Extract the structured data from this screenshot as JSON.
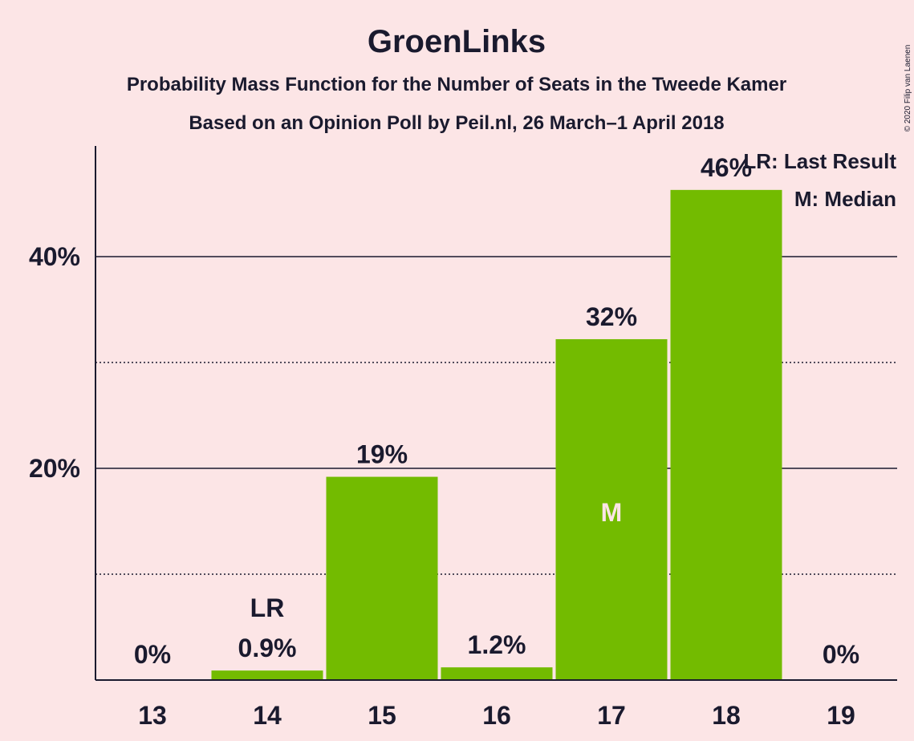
{
  "chart_data": {
    "type": "bar",
    "title": "GroenLinks",
    "subtitle": "Probability Mass Function for the Number of Seats in the Tweede Kamer",
    "subtitle2": "Based on an Opinion Poll by Peil.nl, 26 March–1 April 2018",
    "categories": [
      "13",
      "14",
      "15",
      "16",
      "17",
      "18",
      "19"
    ],
    "values": [
      0,
      0.9,
      19.2,
      1.2,
      32.2,
      46.3,
      0
    ],
    "data_labels": [
      "0%",
      "0.9%",
      "19%",
      "1.2%",
      "32%",
      "46%",
      "0%"
    ],
    "ylim": [
      0,
      50
    ],
    "yticks": [
      {
        "value": 20,
        "label": "20%"
      },
      {
        "value": 40,
        "label": "40%"
      }
    ],
    "minor_gridlines": [
      10,
      30
    ],
    "last_result": {
      "category": "14",
      "label": "LR"
    },
    "median": {
      "category": "17",
      "label": "M"
    },
    "legend": [
      "LR: Last Result",
      "M: Median"
    ],
    "legend_position": "top-right",
    "bar_color": "#73bb00",
    "copyright": "© 2020 Filip van Laenen"
  }
}
